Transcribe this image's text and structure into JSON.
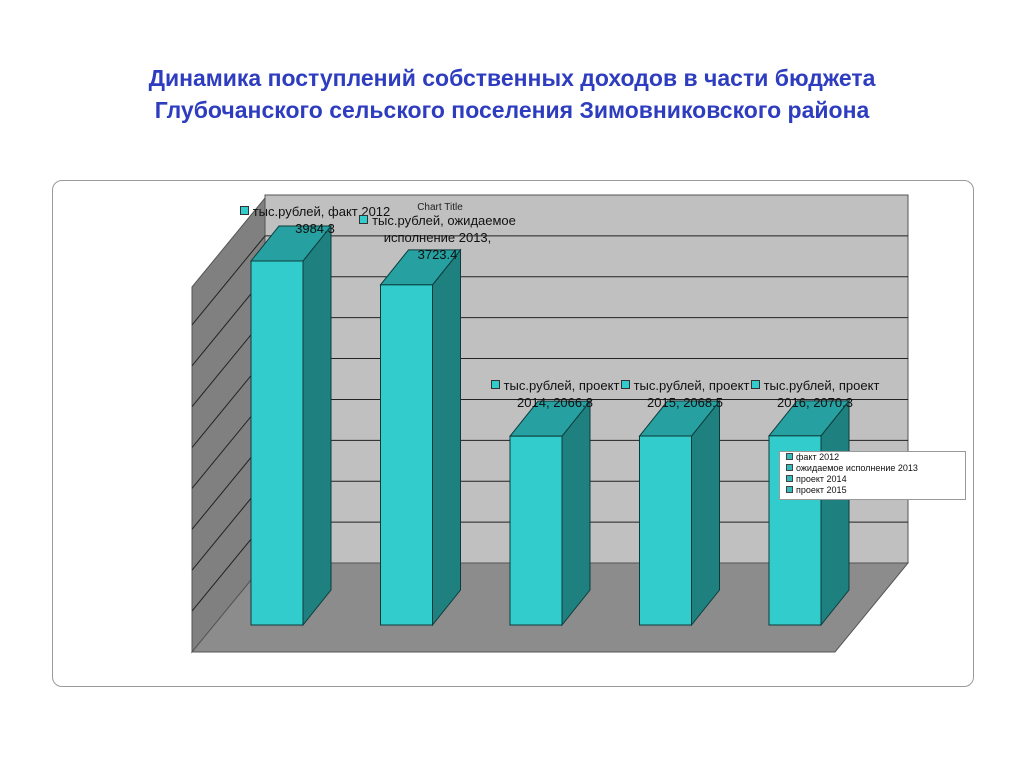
{
  "page": {
    "title_line1": "Динамика поступлений собственных доходов в части бюджета",
    "title_line2": "Глубочанского сельского поселения Зимовниковского района"
  },
  "chart_data": {
    "type": "bar",
    "title": "Chart Title",
    "categories": [
      "факт 2012",
      "ожидаемое исполнение 2013",
      "проект 2014",
      "проект 2015",
      "проект 2016"
    ],
    "series": [
      {
        "name": "тыс.рублей",
        "values": [
          3984.3,
          3723.4,
          2066.8,
          2068.5,
          2070.3
        ]
      }
    ],
    "data_labels": [
      [
        "тыс.рублей, факт 2012",
        "3984.3"
      ],
      [
        "тыс.рублей, ожидаемое",
        "исполнение 2013,",
        "3723.4"
      ],
      [
        "тыс.рублей, проект",
        "2014, 2066.8"
      ],
      [
        "тыс.рублей, проект",
        "2015, 2068.5"
      ],
      [
        "тыс.рублей, проект",
        "2016, 2070.3"
      ]
    ],
    "legend": [
      "факт 2012",
      "ожидаемое исполнение 2013",
      "проект 2014",
      "проект 2015"
    ],
    "legend_position": "right",
    "ylim": [
      0,
      4500
    ],
    "grid": true,
    "three_d": true,
    "colors": {
      "bar_front": "#33cccc",
      "bar_side": "#1f8080",
      "bar_top": "#26a0a0",
      "back_wall": "#c0c0c0",
      "side_wall": "#808080",
      "floor": "#8c8c8c"
    }
  }
}
